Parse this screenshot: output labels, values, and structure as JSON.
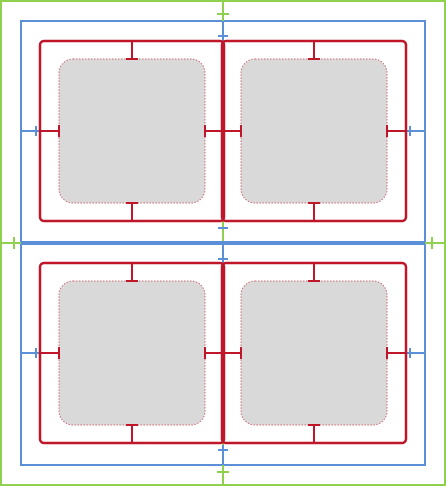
{
  "diagram": {
    "type": "nested-padding-layout",
    "grid": {
      "rows": 2,
      "columns": 2
    },
    "colors": {
      "outer_frame": "#8fd14f",
      "container_frame": "#5b8fd8",
      "cell_border": "#c0162a",
      "content_fill": "#d9d9d9",
      "content_outline": "#d06a74"
    },
    "cells": [
      {
        "row": 1,
        "column": 1
      },
      {
        "row": 1,
        "column": 2
      },
      {
        "row": 2,
        "column": 1
      },
      {
        "row": 2,
        "column": 2
      }
    ]
  }
}
